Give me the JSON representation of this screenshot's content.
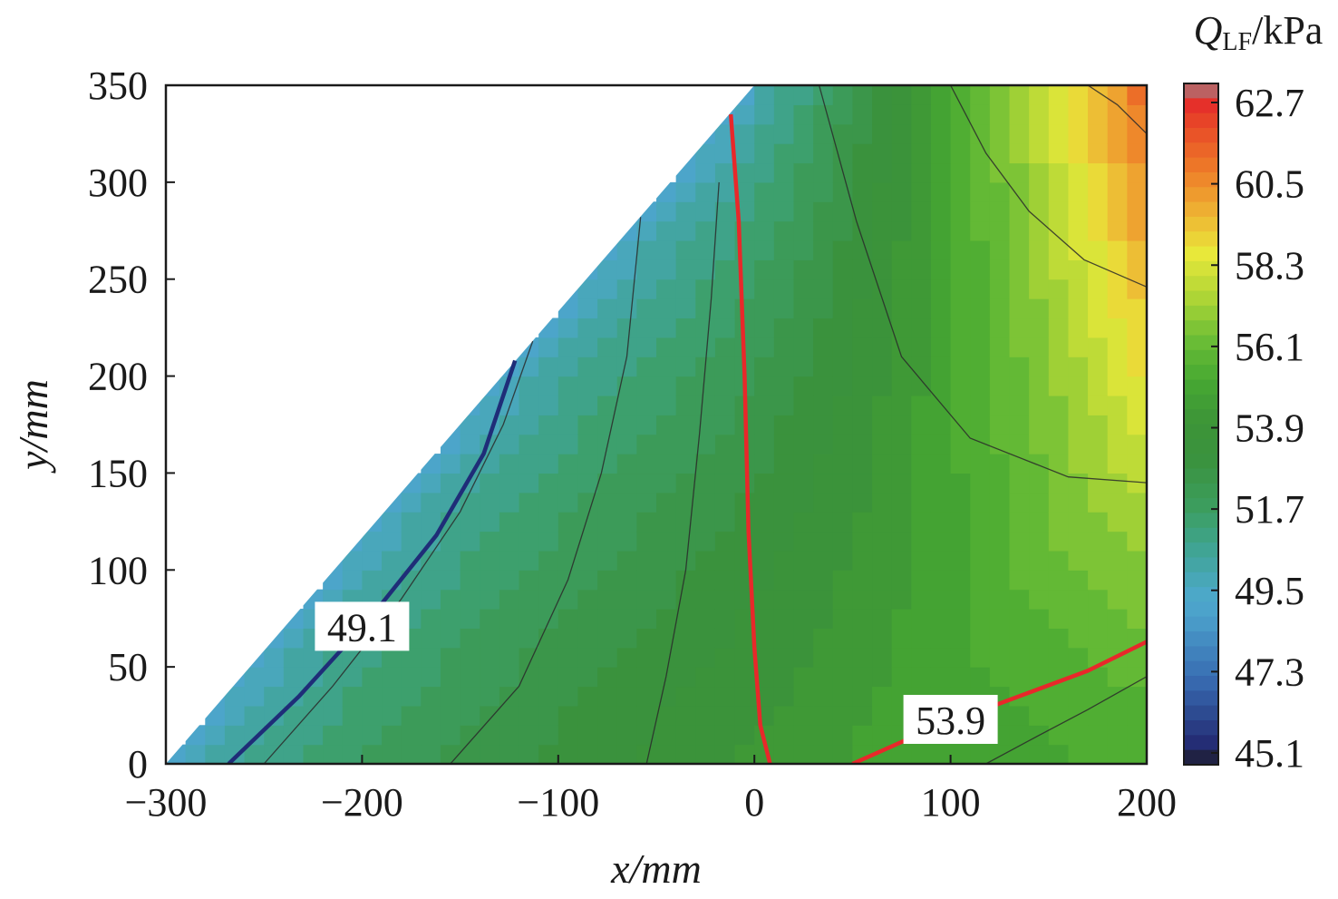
{
  "chart_data": {
    "type": "heatmap",
    "subtype": "filled-contour",
    "title": "",
    "xlabel": "x/mm",
    "ylabel": "y/mm",
    "xlim": [
      -300,
      200
    ],
    "ylim": [
      0,
      350
    ],
    "x_ticks": [
      -300,
      -200,
      -100,
      0,
      100,
      200
    ],
    "x_tick_labels": [
      "−300",
      "−200",
      "−100",
      "0",
      "100",
      "200"
    ],
    "y_ticks": [
      0,
      50,
      100,
      150,
      200,
      250,
      300,
      350
    ],
    "y_tick_labels": [
      "0",
      "50",
      "100",
      "150",
      "200",
      "250",
      "300",
      "350"
    ],
    "domain_boundary": [
      [
        -300,
        0
      ],
      [
        0,
        350
      ]
    ],
    "colorbar": {
      "label_symbol": "Q",
      "label_subscript": "LF",
      "label_unit": "/kPa",
      "min": 45.1,
      "max": 62.7,
      "ticks": [
        62.7,
        60.5,
        58.3,
        56.1,
        53.9,
        51.7,
        49.5,
        47.3,
        45.1
      ],
      "tick_labels": [
        "62.7",
        "60.5",
        "58.3",
        "56.1",
        "53.9",
        "51.7",
        "49.5",
        "47.3",
        "45.1"
      ]
    },
    "contour_labels": [
      {
        "text": "49.1",
        "level": 49.1,
        "x": -200,
        "y": 70,
        "color": "#1a2a6e"
      },
      {
        "text": "53.9",
        "level": 53.9,
        "x": 100,
        "y": 22,
        "color": "#e8282a"
      }
    ],
    "highlighted_contours": [
      {
        "level": 49.1,
        "color": "#1f2d78",
        "points": [
          [
            -268,
            0
          ],
          [
            -232,
            35
          ],
          [
            -196,
            75
          ],
          [
            -162,
            118
          ],
          [
            -138,
            160
          ],
          [
            -122,
            208
          ]
        ]
      },
      {
        "level": 53.9,
        "color": "#e8282a",
        "points": [
          [
            -12,
            335
          ],
          [
            -8,
            280
          ],
          [
            -5,
            200
          ],
          [
            -3,
            120
          ],
          [
            0,
            60
          ],
          [
            3,
            20
          ],
          [
            8,
            0
          ]
        ]
      },
      {
        "level": 53.9,
        "color": "#e8282a",
        "points": [
          [
            50,
            0
          ],
          [
            90,
            18
          ],
          [
            130,
            33
          ],
          [
            170,
            48
          ],
          [
            200,
            63
          ]
        ]
      }
    ],
    "grid": false,
    "legend": "colorbar-right"
  }
}
